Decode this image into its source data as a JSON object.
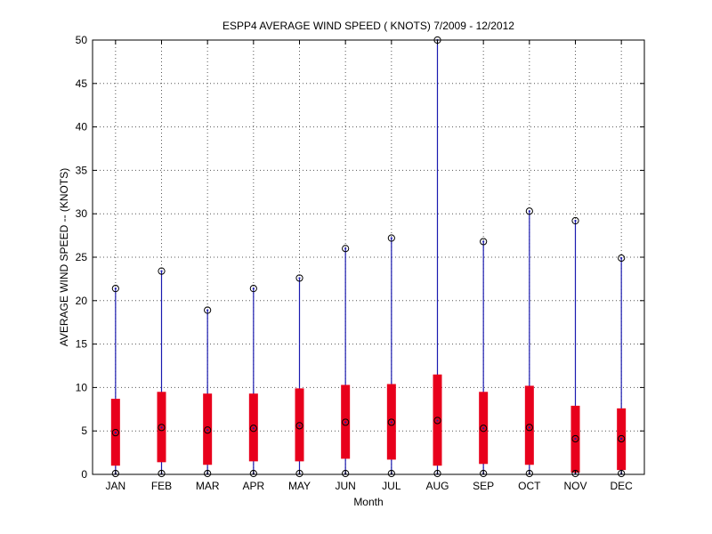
{
  "chart_data": {
    "type": "box",
    "title": "ESPP4  AVERAGE WIND SPEED ( KNOTS) 7/2009 - 12/2012",
    "xlabel": "Month",
    "ylabel": "AVERAGE WIND SPEED -- (KNOTS)",
    "ylim": [
      0,
      50
    ],
    "yticks": [
      0,
      5,
      10,
      15,
      20,
      25,
      30,
      35,
      40,
      45,
      50
    ],
    "grid": true,
    "colors": {
      "box": "#e8001c",
      "whisker": "#1a1ab0",
      "marker": "#000000",
      "axis": "#000000",
      "grid": "#555555"
    },
    "categories": [
      "JAN",
      "FEB",
      "MAR",
      "APR",
      "MAY",
      "JUN",
      "JUL",
      "AUG",
      "SEP",
      "OCT",
      "NOV",
      "DEC"
    ],
    "min": [
      0.1,
      0.1,
      0.1,
      0.1,
      0.1,
      0.1,
      0.1,
      0.1,
      0.1,
      0.1,
      0.1,
      0.1
    ],
    "q1": [
      1.0,
      1.4,
      1.1,
      1.5,
      1.5,
      1.8,
      1.7,
      1.0,
      1.2,
      1.1,
      0.2,
      0.5
    ],
    "median": [
      4.8,
      5.4,
      5.1,
      5.3,
      5.6,
      6.0,
      6.0,
      6.2,
      5.3,
      5.4,
      4.1,
      4.1
    ],
    "q3": [
      8.7,
      9.5,
      9.3,
      9.3,
      9.9,
      10.3,
      10.4,
      11.5,
      9.5,
      10.2,
      7.9,
      7.6
    ],
    "max": [
      21.4,
      23.4,
      18.9,
      21.4,
      22.6,
      26.0,
      27.2,
      50.0,
      26.8,
      30.3,
      29.2,
      24.9
    ]
  }
}
